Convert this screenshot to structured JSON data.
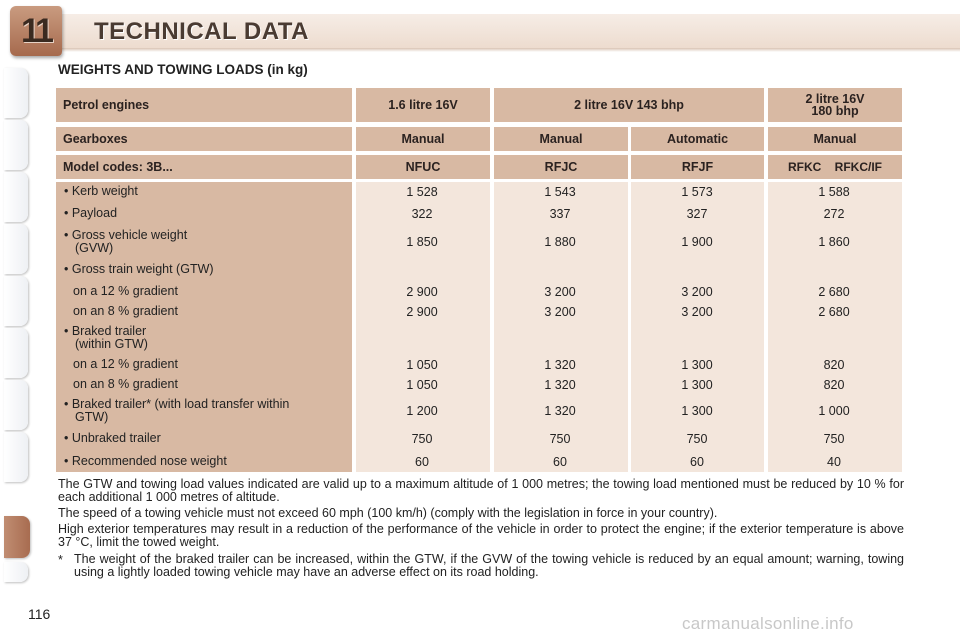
{
  "header": {
    "chapter_number": "11",
    "title": "TECHNICAL DATA"
  },
  "section_title": "WEIGHTS AND TOWING LOADS (in kg)",
  "table": {
    "row_petrol": {
      "label": "Petrol engines",
      "engine_1": "1.6 litre 16V",
      "engine_2": "2 litre 16V 143 bhp",
      "engine_3_line1": "2 litre 16V",
      "engine_3_line2": "180 bhp"
    },
    "row_gearbox": {
      "label": "Gearboxes",
      "values": [
        "Manual",
        "Manual",
        "Automatic",
        "Manual"
      ]
    },
    "row_model": {
      "label": "Model codes: 3B...",
      "values": [
        "NFUC",
        "RFJC",
        "RFJF",
        "RFKC    RFKC/IF"
      ]
    },
    "rows": [
      {
        "label": "• Kerb weight",
        "values": [
          "1 528",
          "1 543",
          "1 573",
          "1 588"
        ]
      },
      {
        "label": "• Payload",
        "values": [
          "322",
          "337",
          "327",
          "272"
        ]
      },
      {
        "label": "• Gross vehicle weight",
        "label2": "(GVW)",
        "values": [
          "1 850",
          "1 880",
          "1 900",
          "1 860"
        ]
      },
      {
        "label": "• Gross train weight (GTW)",
        "values": [
          "",
          "",
          "",
          ""
        ]
      },
      {
        "label": "on a 12 % gradient",
        "values": [
          "2 900",
          "3 200",
          "3 200",
          "2 680"
        ]
      },
      {
        "label": "on an 8 % gradient",
        "values": [
          "2 900",
          "3 200",
          "3 200",
          "2 680"
        ]
      },
      {
        "label": "• Braked trailer",
        "label2": "(within GTW)",
        "values": [
          "",
          "",
          "",
          ""
        ]
      },
      {
        "label": "on a 12 % gradient",
        "values": [
          "1 050",
          "1 320",
          "1 300",
          "820"
        ]
      },
      {
        "label": "on an 8 % gradient",
        "values": [
          "1 050",
          "1 320",
          "1 300",
          "820"
        ]
      },
      {
        "label": "• Braked trailer* (with load transfer within",
        "label2": "GTW)",
        "values": [
          "1 200",
          "1 320",
          "1 300",
          "1 000"
        ]
      },
      {
        "label": "• Unbraked trailer",
        "values": [
          "750",
          "750",
          "750",
          "750"
        ]
      },
      {
        "label": "• Recommended nose weight",
        "values": [
          "60",
          "60",
          "60",
          "40"
        ]
      }
    ]
  },
  "notes": {
    "altitude": "The GTW and towing load values indicated are valid up to a maximum altitude of 1 000 metres; the towing load mentioned must be reduced by 10 % for each additional 1 000 metres of altitude.",
    "speed": "The speed of a towing vehicle must not exceed 60 mph (100 km/h) (comply with the legislation in force in your country).",
    "temperature": "High exterior temperatures may result in a reduction of the performance of the vehicle in order to protect the engine; if the exterior temperature is above 37 °C, limit the towed weight.",
    "star_symbol": "*",
    "star_note": "The weight of the braked trailer can be increased, within the GTW, if the GVW of the towing vehicle is reduced by an equal amount; warning, towing using a lightly loaded towing vehicle may have an adverse effect on its road holding."
  },
  "page_number": "116",
  "watermark": "carmanualsonline.info",
  "colors": {
    "header_cell": "#d8b9a3",
    "body_cell": "#f3e6dc",
    "chapter_tab": "#b17a5c"
  }
}
